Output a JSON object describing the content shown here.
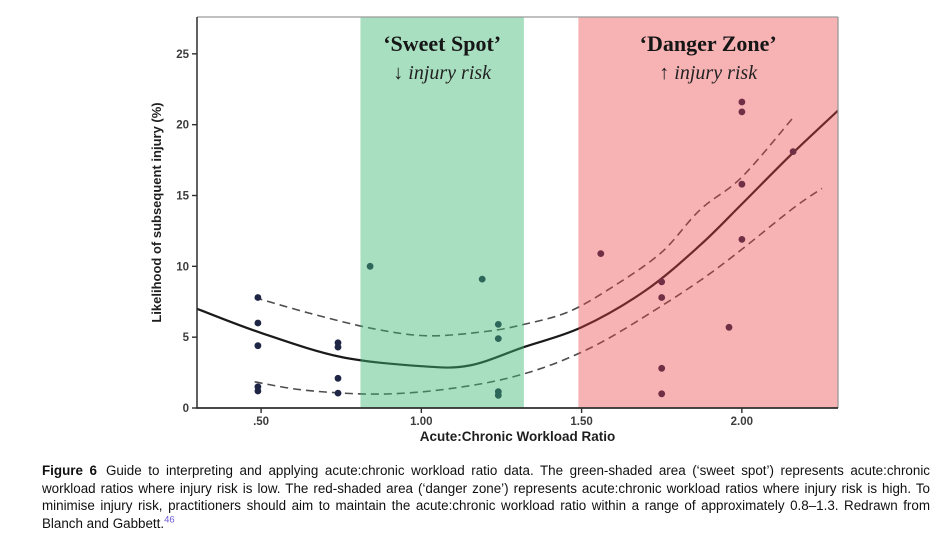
{
  "figure": {
    "caption_label": "Figure 6",
    "caption_text": "Guide to interpreting and applying acute:chronic workload ratio data. The green-shaded area (‘sweet spot’) represents acute:chronic workload ratios where injury risk is low. The red-shaded area (‘danger zone’) represents acute:chronic workload ratios where injury risk is high. To minimise injury risk, practitioners should aim to maintain the acute:chronic workload ratio within a range of approximately 0.8–1.3. Redrawn from Blanch and Gabbett.",
    "caption_ref": "46"
  },
  "chart_data": {
    "type": "scatter",
    "xlabel": "Acute:Chronic Workload Ratio",
    "ylabel": "Likelihood of subsequent injury (%)",
    "xlim": [
      0.3,
      2.3
    ],
    "ylim": [
      0,
      27.6
    ],
    "grid": false,
    "x_ticks": [
      {
        "value": 0.5,
        "label": ".50"
      },
      {
        "value": 1.0,
        "label": "1.00"
      },
      {
        "value": 1.5,
        "label": "1.50"
      },
      {
        "value": 2.0,
        "label": "2.00"
      }
    ],
    "y_ticks": [
      {
        "value": 0,
        "label": "0"
      },
      {
        "value": 5,
        "label": "5"
      },
      {
        "value": 10,
        "label": "10"
      },
      {
        "value": 15,
        "label": "15"
      },
      {
        "value": 20,
        "label": "20"
      },
      {
        "value": 25,
        "label": "25"
      }
    ],
    "zones": [
      {
        "name": "sweet-spot",
        "from": 0.81,
        "to": 1.32,
        "label": "‘Sweet Spot’",
        "sublabel": "↓ injury risk",
        "overlay": "rgba(62,184,115,0.45)"
      },
      {
        "name": "danger-zone",
        "from": 1.49,
        "to": 2.3,
        "label": "‘Danger Zone’",
        "sublabel": "↑ injury risk",
        "overlay": "rgba(236,62,68,0.40)"
      }
    ],
    "points": [
      [
        0.49,
        7.8
      ],
      [
        0.49,
        6.0
      ],
      [
        0.49,
        4.4
      ],
      [
        0.49,
        1.5
      ],
      [
        0.49,
        1.2
      ],
      [
        0.74,
        4.6
      ],
      [
        0.74,
        4.3
      ],
      [
        0.74,
        2.1
      ],
      [
        0.74,
        1.05
      ],
      [
        0.84,
        10.0
      ],
      [
        1.19,
        9.1
      ],
      [
        1.24,
        5.9
      ],
      [
        1.24,
        4.9
      ],
      [
        1.24,
        1.15
      ],
      [
        1.24,
        0.9
      ],
      [
        1.56,
        10.9
      ],
      [
        1.75,
        8.9
      ],
      [
        1.75,
        7.8
      ],
      [
        1.75,
        2.8
      ],
      [
        1.75,
        1.0
      ],
      [
        1.96,
        5.7
      ],
      [
        2.0,
        21.6
      ],
      [
        2.0,
        20.9
      ],
      [
        2.0,
        15.8
      ],
      [
        2.0,
        11.9
      ],
      [
        2.16,
        18.1
      ]
    ],
    "series": [
      {
        "name": "fitted-curve",
        "style": "solid",
        "values": [
          [
            0.3,
            7.0
          ],
          [
            0.5,
            5.3
          ],
          [
            0.75,
            3.6
          ],
          [
            1.0,
            2.95
          ],
          [
            1.15,
            3.0
          ],
          [
            1.32,
            4.3
          ],
          [
            1.5,
            5.7
          ],
          [
            1.7,
            8.3
          ],
          [
            1.87,
            11.5
          ],
          [
            2.0,
            14.4
          ],
          [
            2.15,
            17.8
          ],
          [
            2.3,
            21.0
          ]
        ]
      },
      {
        "name": "upper-confidence-band",
        "style": "dashed",
        "values": [
          [
            0.48,
            7.8
          ],
          [
            0.65,
            6.7
          ],
          [
            0.85,
            5.6
          ],
          [
            1.02,
            5.1
          ],
          [
            1.2,
            5.4
          ],
          [
            1.32,
            5.9
          ],
          [
            1.46,
            6.8
          ],
          [
            1.6,
            8.6
          ],
          [
            1.75,
            11.0
          ],
          [
            1.87,
            14.0
          ],
          [
            2.0,
            16.3
          ],
          [
            2.16,
            20.5
          ]
        ]
      },
      {
        "name": "lower-confidence-band",
        "style": "dashed",
        "values": [
          [
            0.48,
            1.85
          ],
          [
            0.62,
            1.3
          ],
          [
            0.8,
            1.0
          ],
          [
            0.95,
            1.05
          ],
          [
            1.1,
            1.4
          ],
          [
            1.25,
            2.0
          ],
          [
            1.4,
            3.0
          ],
          [
            1.55,
            4.5
          ],
          [
            1.7,
            6.5
          ],
          [
            1.87,
            9.0
          ],
          [
            2.0,
            11.2
          ],
          [
            2.16,
            14.1
          ],
          [
            2.25,
            15.5
          ]
        ]
      }
    ],
    "colors": {
      "point": "#1f2545",
      "curve": "#1a1a1a",
      "dashed": "#4d4d4d",
      "axis": "#2e2e2e",
      "frame": "#9a9a9a"
    }
  }
}
